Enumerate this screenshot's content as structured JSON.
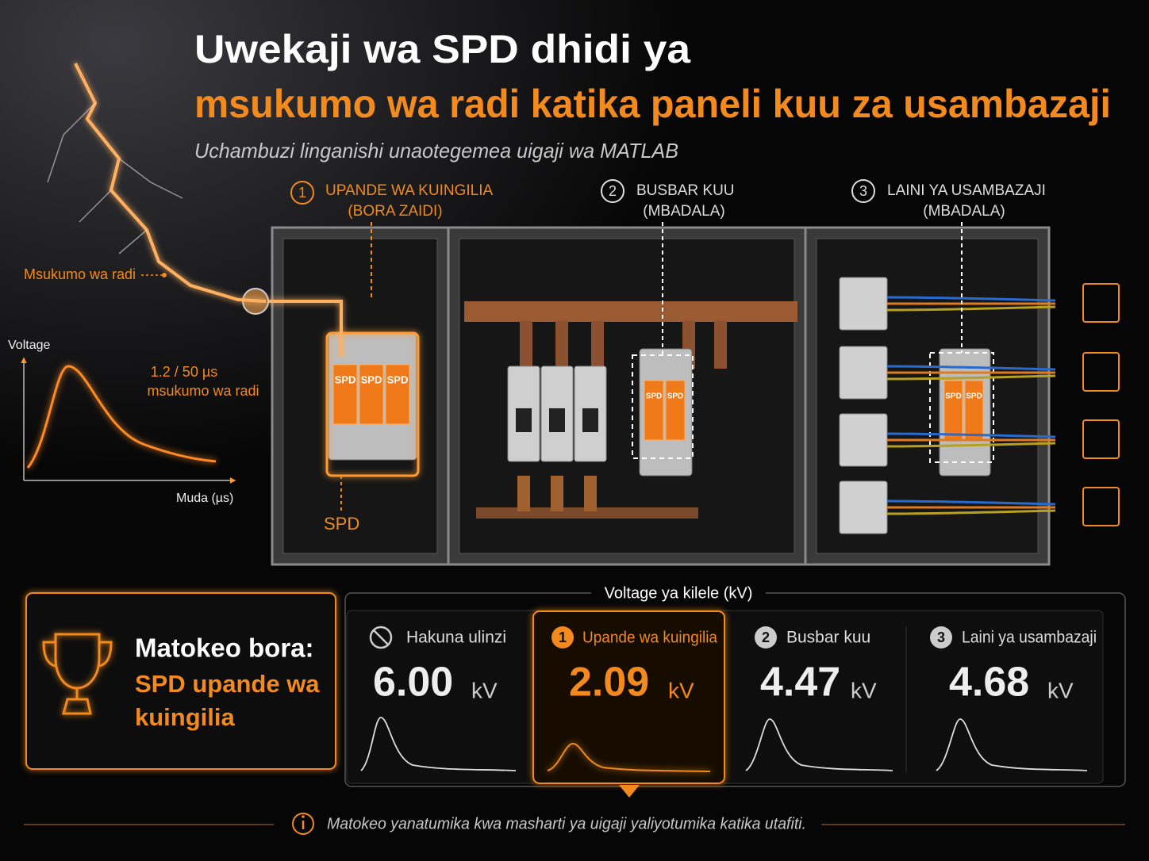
{
  "header": {
    "title_line1": "Uwekaji wa SPD dhidi ya",
    "title_line2": "msukumo wa radi katika paneli kuu za usambazaji",
    "subtitle": "Uchambuzi linganishi unaotegemea uigaji wa MATLAB"
  },
  "locations": [
    {
      "number": "1",
      "label": "UPANDE WA KUINGILIA",
      "note": "(BORA ZAIDI)"
    },
    {
      "number": "2",
      "label": "BUSBAR KUU",
      "note": "(MBADALA)"
    },
    {
      "number": "3",
      "label": "LAINI YA USAMBAZAJI",
      "note": "(MBADALA)"
    }
  ],
  "diagram": {
    "surge_label": "Msukumo wa radi",
    "spd_label": "SPD"
  },
  "waveform": {
    "y_label": "Voltage",
    "x_label": "Muda (µs)",
    "caption_line1": "1.2 / 50 µs",
    "caption_line2": "msukumo wa radi"
  },
  "best_result": {
    "heading": "Matokeo bora:",
    "text": "SPD upande wa kuingilia"
  },
  "comparison": {
    "title": "Voltage ya kilele (kV)",
    "cards": [
      {
        "label": "Hakuna ulinzi",
        "value": "6.00",
        "unit": "kV"
      },
      {
        "badge": "1",
        "label": "Upande wa kuingilia",
        "value": "2.09",
        "unit": "kV"
      },
      {
        "badge": "2",
        "label": "Busbar kuu",
        "value": "4.47",
        "unit": "kV"
      },
      {
        "badge": "3",
        "label": "Laini ya usambazaji",
        "value": "4.68",
        "unit": "kV"
      }
    ]
  },
  "footer": {
    "note": "Matokeo yanatumika kwa masharti ya uigaji yaliyotumika katika utafiti."
  }
}
